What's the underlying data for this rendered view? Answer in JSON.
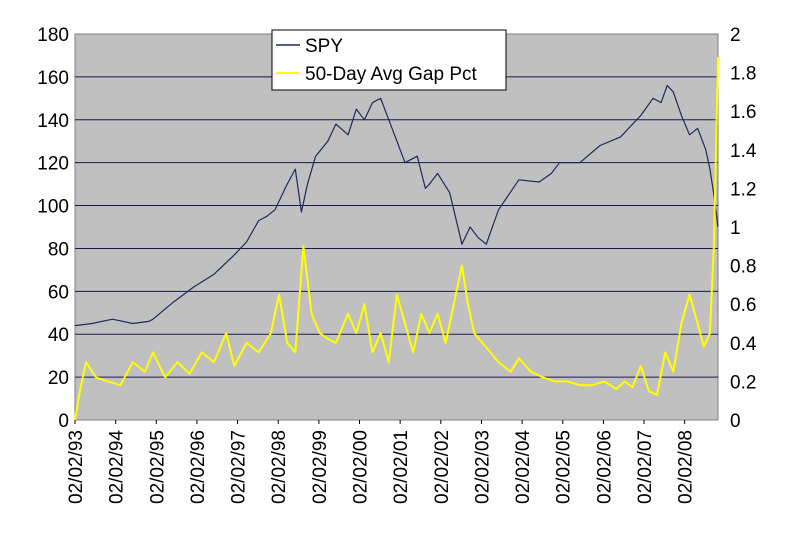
{
  "chart_data": {
    "type": "line",
    "title": "",
    "legend": {
      "placement": "top-center",
      "entries": [
        "SPY",
        "50-Day Avg Gap Pct"
      ]
    },
    "x_ticks": [
      "02/02/93",
      "02/02/94",
      "02/02/95",
      "02/02/96",
      "02/02/97",
      "02/02/98",
      "02/02/99",
      "02/02/00",
      "02/02/01",
      "02/02/02",
      "02/02/03",
      "02/02/04",
      "02/02/05",
      "02/02/06",
      "02/02/07",
      "02/02/08"
    ],
    "x_range": [
      1993.08,
      2008.9
    ],
    "y_left": {
      "range": [
        0,
        180
      ],
      "ticks": [
        "0",
        "20",
        "40",
        "60",
        "80",
        "100",
        "120",
        "140",
        "160",
        "180"
      ]
    },
    "y_right": {
      "range": [
        0,
        2
      ],
      "ticks": [
        "0",
        "0.2",
        "0.4",
        "0.6",
        "0.8",
        "1",
        "1.2",
        "1.4",
        "1.6",
        "1.8",
        "2"
      ]
    },
    "grid": true,
    "background": "#c0c0c0",
    "series": [
      {
        "name": "SPY",
        "axis": "left",
        "color": "#1f2a5c",
        "x": [
          1993.08,
          1993.5,
          1994.0,
          1994.5,
          1994.9,
          1995.0,
          1995.5,
          1996.0,
          1996.5,
          1997.0,
          1997.3,
          1997.6,
          1997.8,
          1998.0,
          1998.3,
          1998.5,
          1998.65,
          1998.8,
          1999.0,
          1999.3,
          1999.5,
          1999.8,
          2000.0,
          2000.2,
          2000.4,
          2000.6,
          2000.8,
          2001.0,
          2001.2,
          2001.5,
          2001.7,
          2001.8,
          2002.0,
          2002.3,
          2002.5,
          2002.6,
          2002.8,
          2003.0,
          2003.2,
          2003.5,
          2004.0,
          2004.5,
          2004.8,
          2005.0,
          2005.5,
          2006.0,
          2006.5,
          2007.0,
          2007.3,
          2007.5,
          2007.65,
          2007.8,
          2008.0,
          2008.2,
          2008.4,
          2008.6,
          2008.7,
          2008.8,
          2008.9
        ],
        "values": [
          44,
          45,
          47,
          45,
          46,
          47,
          55,
          62,
          68,
          77,
          83,
          93,
          95,
          98,
          110,
          117,
          97,
          110,
          123,
          130,
          138,
          133,
          145,
          140,
          148,
          150,
          140,
          130,
          120,
          123,
          108,
          110,
          115,
          106,
          90,
          82,
          90,
          85,
          82,
          98,
          112,
          111,
          115,
          120,
          120,
          128,
          132,
          142,
          150,
          148,
          156,
          153,
          142,
          133,
          136,
          126,
          117,
          105,
          90
        ]
      },
      {
        "name": "50-Day Avg Gap Pct",
        "axis": "right",
        "color": "#ffff00",
        "x": [
          1993.08,
          1993.2,
          1993.35,
          1993.6,
          1993.9,
          1994.2,
          1994.5,
          1994.8,
          1995.0,
          1995.3,
          1995.6,
          1995.9,
          1996.2,
          1996.5,
          1996.8,
          1997.0,
          1997.3,
          1997.6,
          1997.9,
          1998.1,
          1998.3,
          1998.5,
          1998.7,
          1998.9,
          1999.1,
          1999.3,
          1999.5,
          1999.8,
          2000.0,
          2000.2,
          2000.4,
          2000.6,
          2000.8,
          2001.0,
          2001.2,
          2001.4,
          2001.6,
          2001.8,
          2002.0,
          2002.2,
          2002.4,
          2002.6,
          2002.75,
          2002.9,
          2003.1,
          2003.3,
          2003.5,
          2003.8,
          2004.0,
          2004.3,
          2004.6,
          2004.9,
          2005.2,
          2005.5,
          2005.8,
          2006.1,
          2006.4,
          2006.6,
          2006.8,
          2007.0,
          2007.2,
          2007.4,
          2007.6,
          2007.8,
          2008.0,
          2008.2,
          2008.4,
          2008.55,
          2008.7,
          2008.8,
          2008.9
        ],
        "values": [
          0,
          0.15,
          0.3,
          0.22,
          0.2,
          0.18,
          0.3,
          0.25,
          0.35,
          0.22,
          0.3,
          0.24,
          0.35,
          0.3,
          0.45,
          0.28,
          0.4,
          0.35,
          0.45,
          0.65,
          0.4,
          0.35,
          0.9,
          0.55,
          0.45,
          0.42,
          0.4,
          0.55,
          0.45,
          0.6,
          0.35,
          0.45,
          0.3,
          0.65,
          0.5,
          0.35,
          0.55,
          0.45,
          0.55,
          0.4,
          0.6,
          0.8,
          0.6,
          0.45,
          0.4,
          0.35,
          0.3,
          0.25,
          0.32,
          0.25,
          0.22,
          0.2,
          0.2,
          0.18,
          0.18,
          0.2,
          0.16,
          0.2,
          0.17,
          0.28,
          0.15,
          0.13,
          0.35,
          0.25,
          0.5,
          0.65,
          0.5,
          0.38,
          0.45,
          0.9,
          1.88
        ]
      }
    ]
  }
}
